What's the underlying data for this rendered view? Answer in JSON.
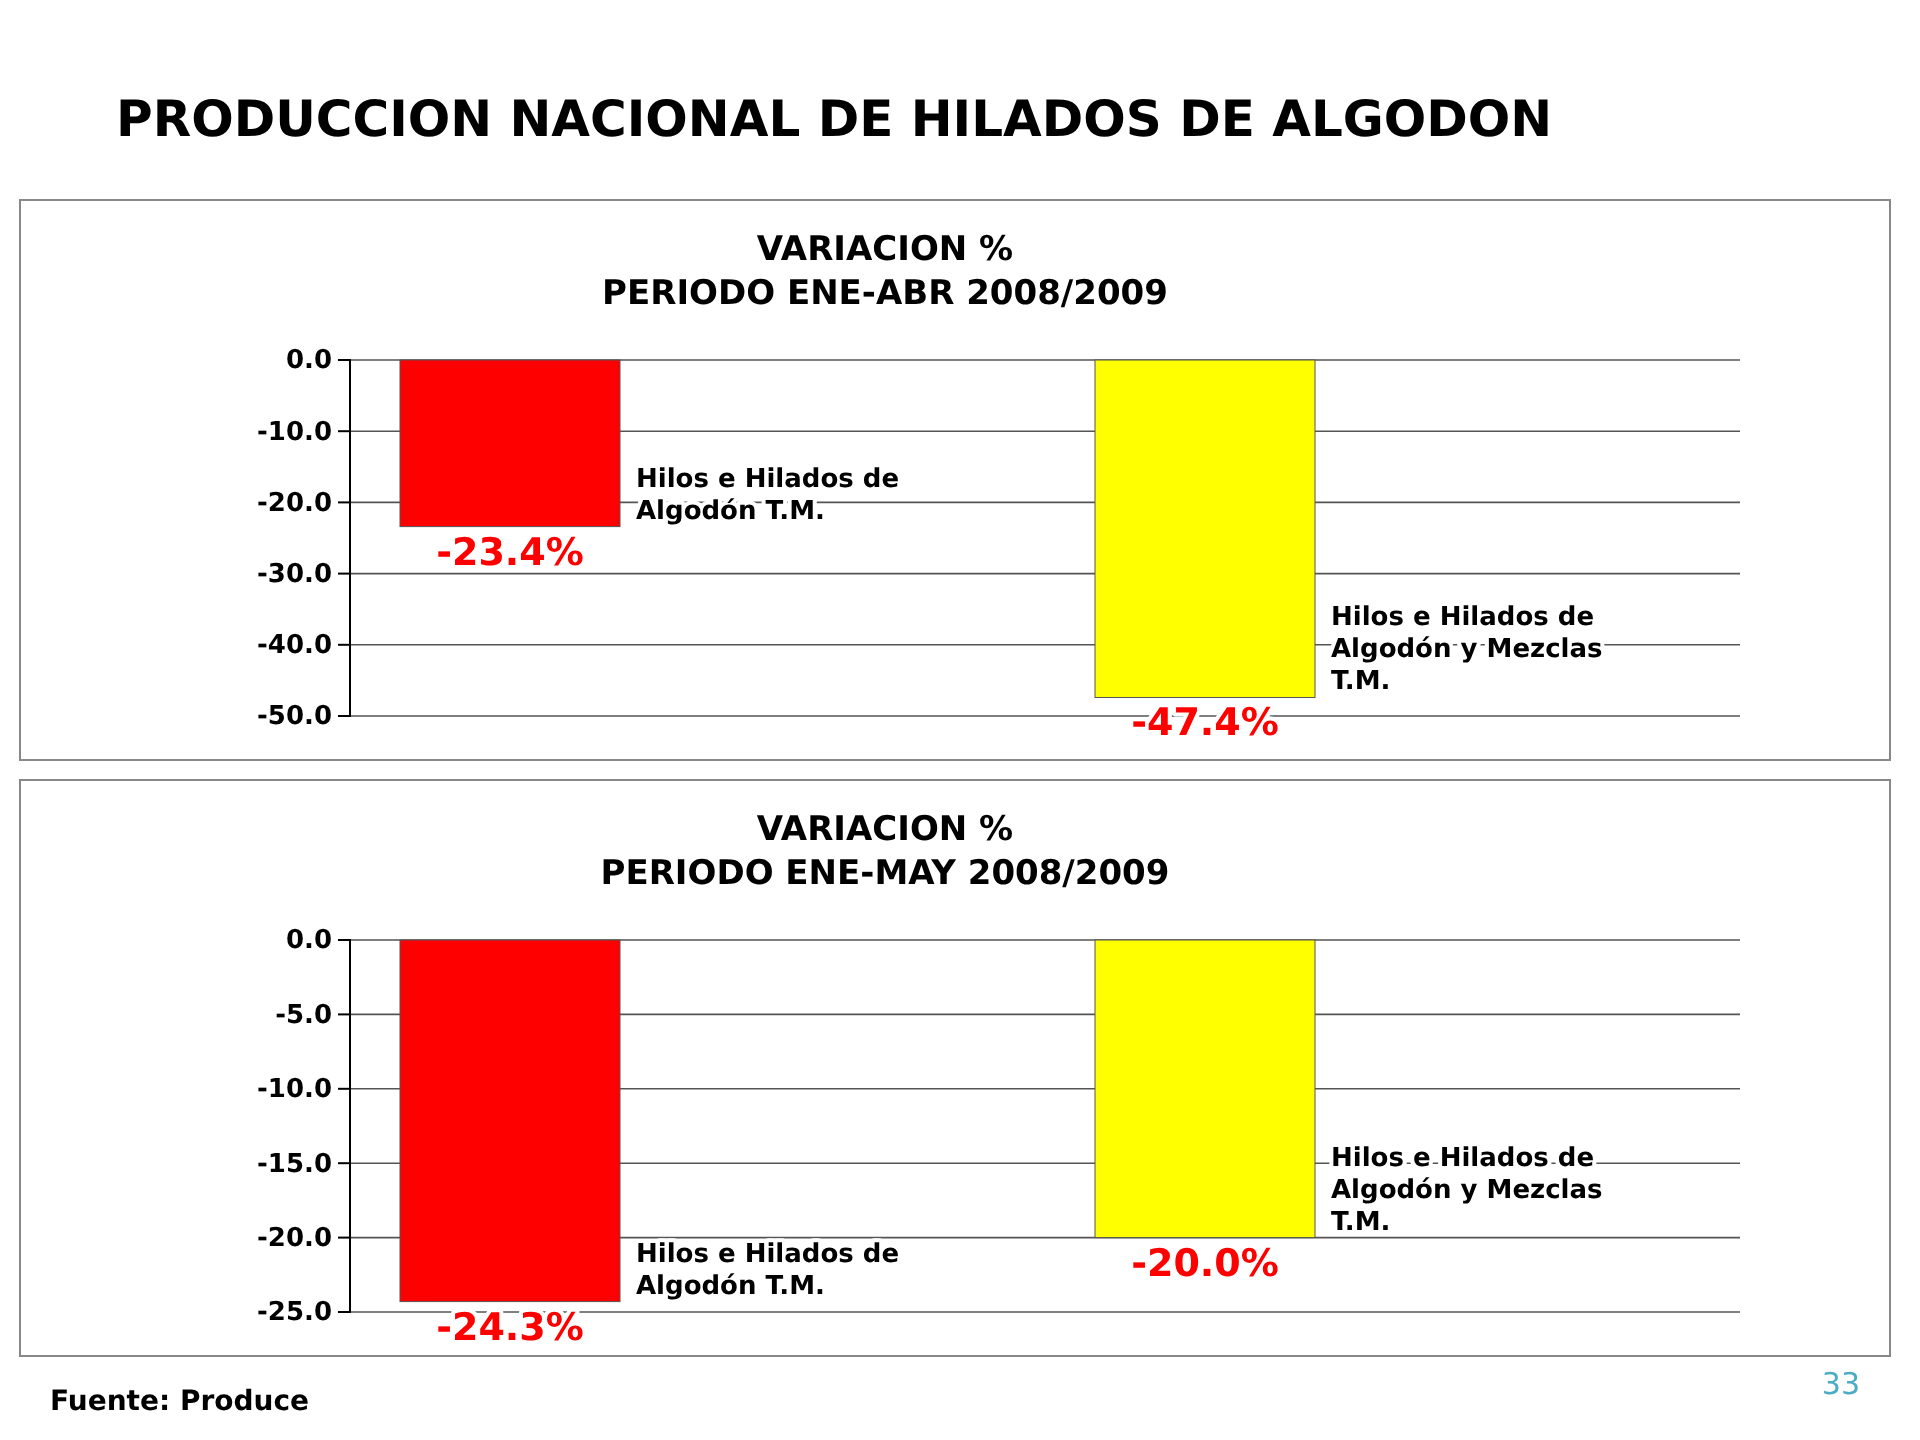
{
  "chart_data": [
    {
      "type": "bar",
      "title": "VARIACION %",
      "subtitle": "PERIODO ENE-ABR 2008/2009",
      "categories": [
        "Hilos e Hilados de Algodón T.M.",
        "Hilos e Hilados de Algodón y Mezclas T.M."
      ],
      "values": [
        -23.4,
        -47.4
      ],
      "colors": [
        "#ff0000",
        "#ffff00"
      ],
      "value_labels": [
        "-23.4%",
        "-47.4%"
      ],
      "ylim": [
        -50,
        0
      ],
      "yticks": [
        {
          "value": 0,
          "label": "0.0"
        },
        {
          "value": -10,
          "label": "-10.0"
        },
        {
          "value": -20,
          "label": "-20.0"
        },
        {
          "value": -30,
          "label": "-30.0"
        },
        {
          "value": -40,
          "label": "-40.0"
        },
        {
          "value": -50,
          "label": "-50.0"
        }
      ],
      "grid": "y",
      "tick_labels": "y",
      "annotations": [
        "PRODUCCION NACIONAL DE HILADOS DE ALGODON"
      ]
    },
    {
      "type": "bar",
      "title": "VARIACION %",
      "subtitle": "PERIODO ENE-MAY 2008/2009",
      "categories": [
        "Hilos e Hilados de Algodón T.M.",
        "Hilos e Hilados de Algodón y Mezclas T.M."
      ],
      "values": [
        -24.3,
        -20.0
      ],
      "colors": [
        "#ff0000",
        "#ffff00"
      ],
      "value_labels": [
        "-24.3%",
        "-20.0%"
      ],
      "ylim": [
        -25,
        0
      ],
      "yticks": [
        {
          "value": 0,
          "label": "0.0"
        },
        {
          "value": -5,
          "label": "-5.0"
        },
        {
          "value": -10,
          "label": "-10.0"
        },
        {
          "value": -15,
          "label": "-15.0"
        },
        {
          "value": -20,
          "label": "-20.0"
        },
        {
          "value": -25,
          "label": "-25.0"
        }
      ],
      "grid": "y",
      "tick_labels": "y",
      "annotations": [
        "Fuente: Produce",
        "33"
      ]
    }
  ]
}
